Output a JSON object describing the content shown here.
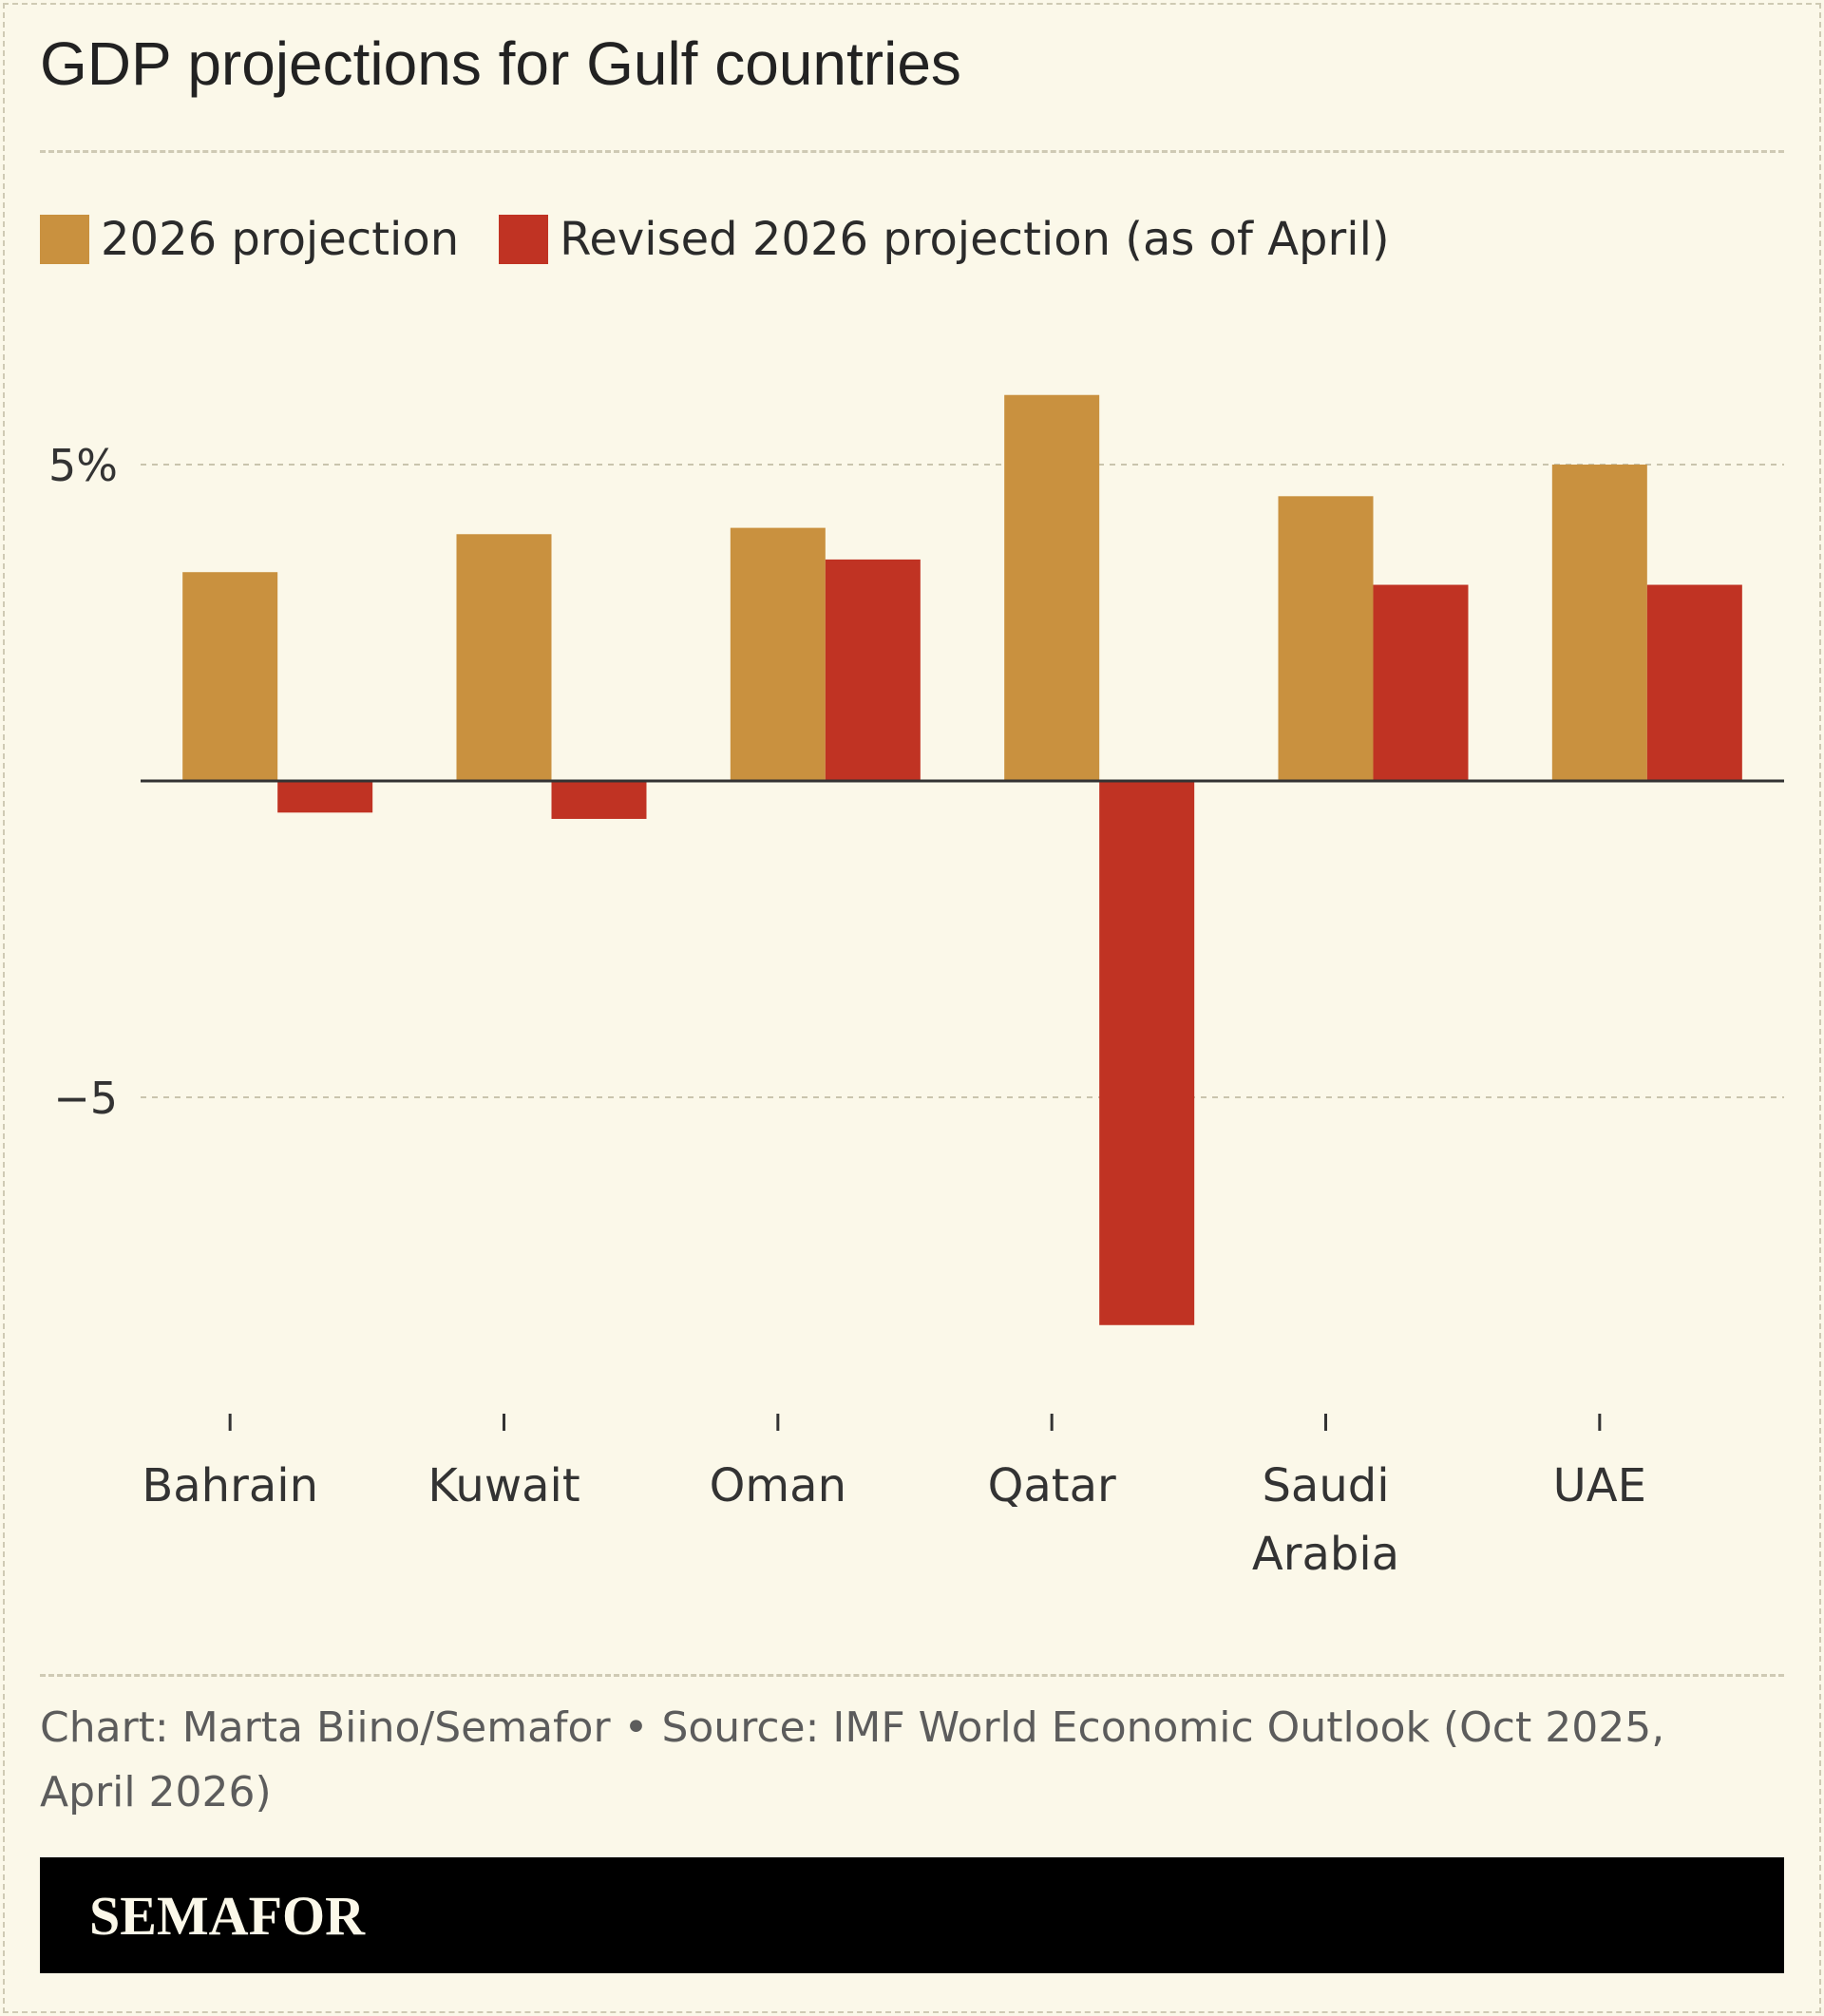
{
  "chart_data": {
    "type": "bar",
    "title": "GDP projections for Gulf countries",
    "categories": [
      "Bahrain",
      "Kuwait",
      "Oman",
      "Qatar",
      "Saudi Arabia",
      "UAE"
    ],
    "category_lines": [
      [
        "Bahrain"
      ],
      [
        "Kuwait"
      ],
      [
        "Oman"
      ],
      [
        "Qatar"
      ],
      [
        "Saudi",
        "Arabia"
      ],
      [
        "UAE"
      ]
    ],
    "series": [
      {
        "name": "2026 projection",
        "color": "#c9913f",
        "values": [
          3.3,
          3.9,
          4.0,
          6.1,
          4.5,
          5.0
        ]
      },
      {
        "name": "Revised 2026 projection (as of April)",
        "color": "#c03323",
        "values": [
          -0.5,
          -0.6,
          3.5,
          -8.6,
          3.1,
          3.1
        ]
      }
    ],
    "ylim": [
      -9.8,
      7.3
    ],
    "yticks": [
      {
        "value": 5,
        "label": "5%"
      },
      {
        "value": -5,
        "label": "−5"
      }
    ],
    "xlabel": "",
    "ylabel": "",
    "grid": true,
    "legend_position": "top-left"
  },
  "source": "Chart: Marta Biino/Semafor • Source: IMF World Economic Outlook (Oct 2025, April 2026)",
  "brand": "SEMAFOR"
}
